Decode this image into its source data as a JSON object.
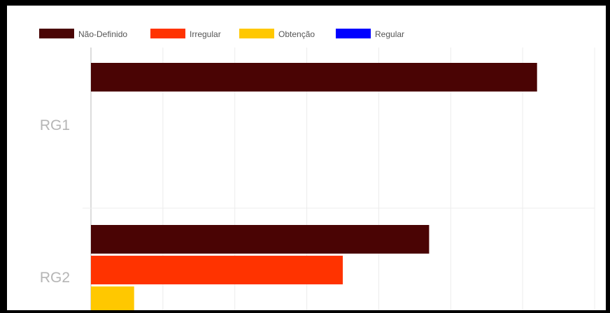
{
  "chart_data": {
    "type": "bar",
    "orientation": "horizontal",
    "categories": [
      "RG1",
      "RG2"
    ],
    "series": [
      {
        "name": "Não-Definido",
        "color": "#4a0404",
        "values": [
          62,
          47
        ]
      },
      {
        "name": "Irregular",
        "color": "#ff3300",
        "values": [
          0,
          35
        ]
      },
      {
        "name": "Obtenção",
        "color": "#ffc800",
        "values": [
          0,
          6
        ]
      },
      {
        "name": "Regular",
        "color": "#0000ff",
        "values": [
          0,
          0
        ]
      }
    ],
    "xlim": [
      0,
      70
    ],
    "grid": true,
    "legend_position": "top-left"
  }
}
